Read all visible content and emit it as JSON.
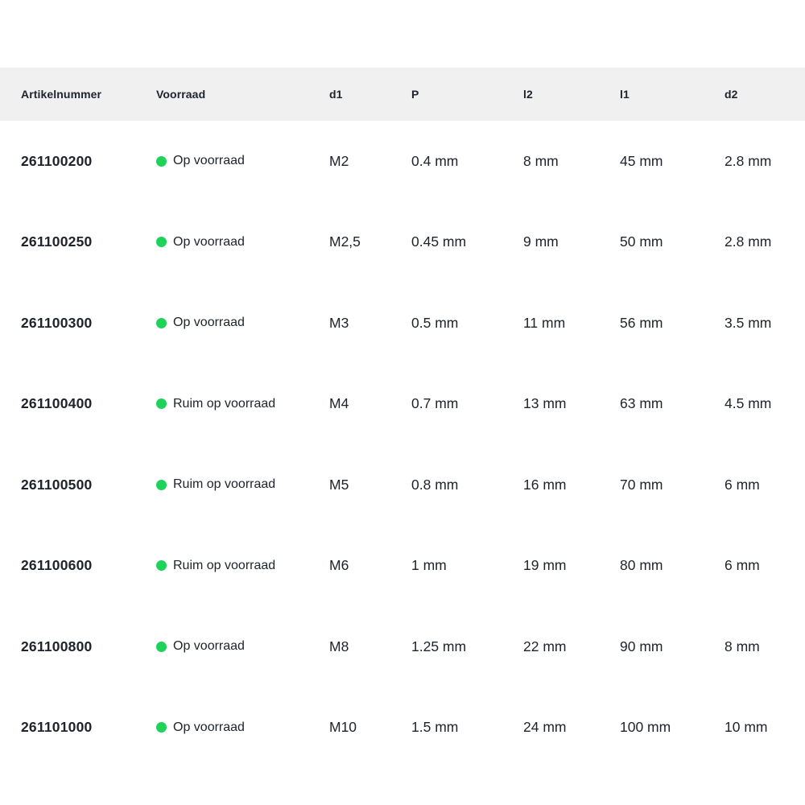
{
  "table": {
    "columns": [
      {
        "key": "artikelnummer",
        "label": "Artikelnummer"
      },
      {
        "key": "voorraad",
        "label": "Voorraad"
      },
      {
        "key": "d1",
        "label": "d1"
      },
      {
        "key": "p",
        "label": "P"
      },
      {
        "key": "l2",
        "label": "l2"
      },
      {
        "key": "l1",
        "label": "l1"
      },
      {
        "key": "d2",
        "label": "d2"
      }
    ],
    "rows": [
      {
        "artikelnummer": "261100200",
        "voorraad": "Op voorraad",
        "d1": "M2",
        "p": "0.4 mm",
        "l2": "8 mm",
        "l1": "45 mm",
        "d2": "2.8 mm"
      },
      {
        "artikelnummer": "261100250",
        "voorraad": "Op voorraad",
        "d1": "M2,5",
        "p": "0.45 mm",
        "l2": "9 mm",
        "l1": "50 mm",
        "d2": "2.8 mm"
      },
      {
        "artikelnummer": "261100300",
        "voorraad": "Op voorraad",
        "d1": "M3",
        "p": "0.5 mm",
        "l2": "11 mm",
        "l1": "56 mm",
        "d2": "3.5 mm"
      },
      {
        "artikelnummer": "261100400",
        "voorraad": "Ruim op voorraad",
        "d1": "M4",
        "p": "0.7 mm",
        "l2": "13 mm",
        "l1": "63 mm",
        "d2": "4.5 mm"
      },
      {
        "artikelnummer": "261100500",
        "voorraad": "Ruim op voorraad",
        "d1": "M5",
        "p": "0.8 mm",
        "l2": "16 mm",
        "l1": "70 mm",
        "d2": "6 mm"
      },
      {
        "artikelnummer": "261100600",
        "voorraad": "Ruim op voorraad",
        "d1": "M6",
        "p": "1 mm",
        "l2": "19 mm",
        "l1": "80 mm",
        "d2": "6 mm"
      },
      {
        "artikelnummer": "261100800",
        "voorraad": "Op voorraad",
        "d1": "M8",
        "p": "1.25 mm",
        "l2": "22 mm",
        "l1": "90 mm",
        "d2": "8 mm"
      },
      {
        "artikelnummer": "261101000",
        "voorraad": "Op voorraad",
        "d1": "M10",
        "p": "1.5 mm",
        "l2": "24 mm",
        "l1": "100 mm",
        "d2": "10 mm"
      }
    ],
    "colors": {
      "header_bg": "#f0f0f0",
      "text": "#20242c",
      "stock_dot_green": "#1ed25a"
    }
  }
}
